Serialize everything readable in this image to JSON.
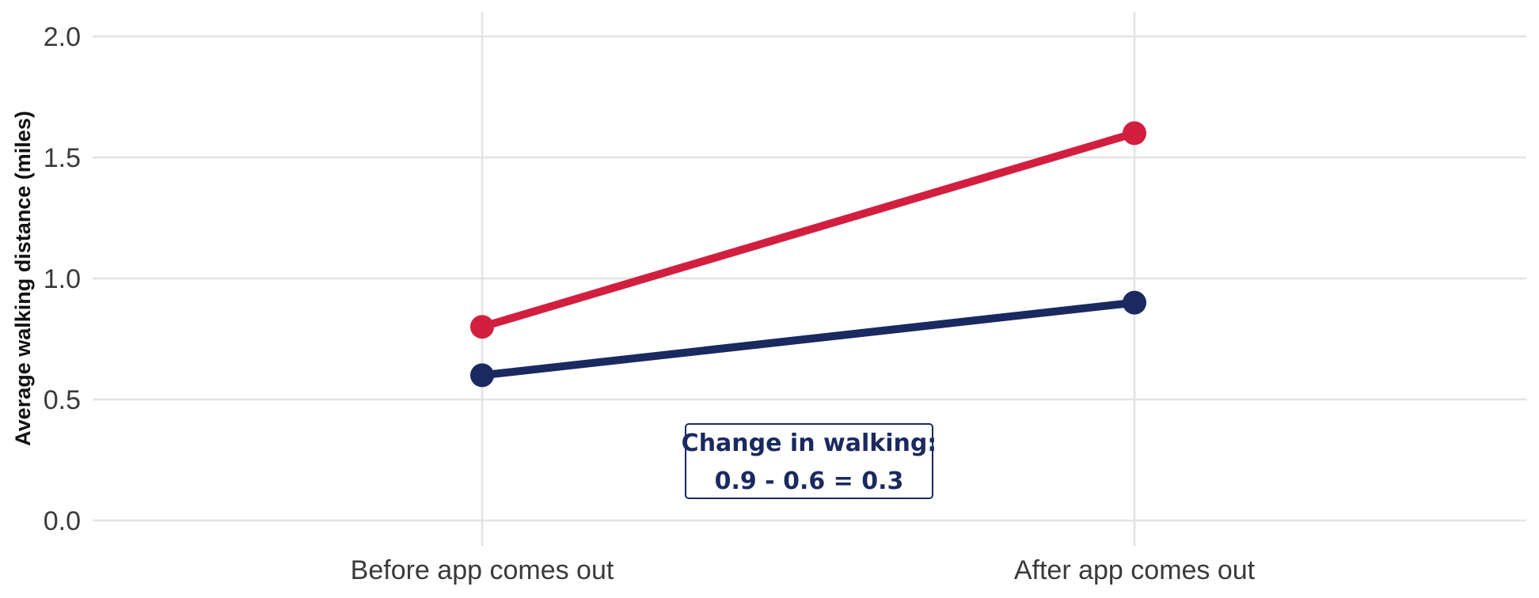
{
  "chart_data": {
    "type": "line",
    "title": "",
    "xlabel": "",
    "ylabel": "Average walking distance (miles)",
    "categories": [
      "Before app comes out",
      "After app comes out"
    ],
    "yticks": [
      "0.0",
      "0.5",
      "1.0",
      "1.5",
      "2.0"
    ],
    "ylim": [
      0,
      2.0
    ],
    "grid": true,
    "series": [
      {
        "color": "#d21f3f",
        "values": [
          0.8,
          1.6
        ]
      },
      {
        "color": "#1a2960",
        "values": [
          0.6,
          0.9
        ]
      }
    ],
    "annotation": {
      "lines": [
        "Change in walking:",
        "0.9 - 0.6 = 0.3"
      ],
      "color": "#1a2960"
    }
  }
}
